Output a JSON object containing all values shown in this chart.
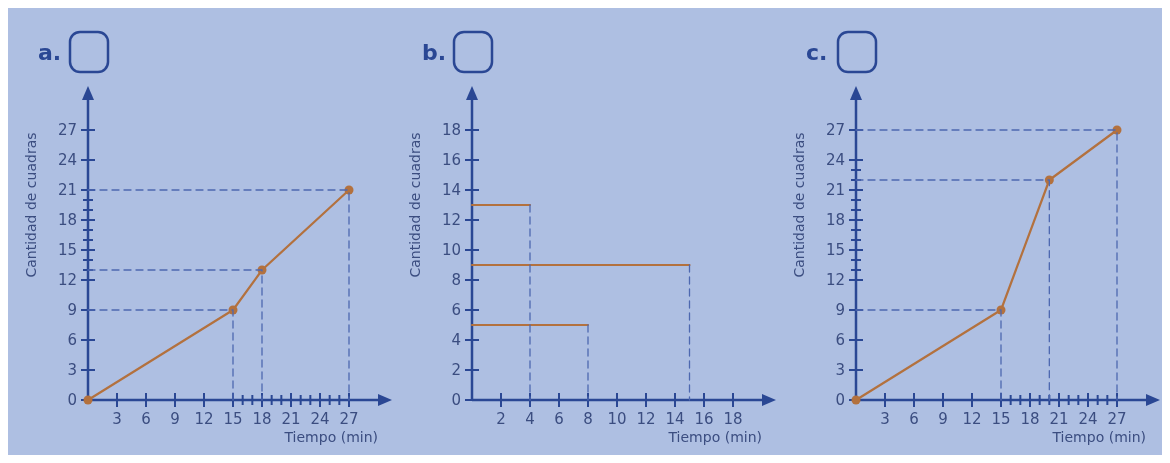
{
  "chart_data": [
    {
      "type": "line",
      "title": "a.",
      "xlabel": "Tiempo (min)",
      "ylabel": "Cantidad de cuadras",
      "xlim": [
        0,
        30
      ],
      "ylim": [
        0,
        30
      ],
      "marker": "circle",
      "xticks": [
        3,
        6,
        9,
        12,
        15,
        {
          "value": 16,
          "label": null
        },
        {
          "value": 17,
          "label": null
        },
        18,
        {
          "value": 19,
          "label": null
        },
        {
          "value": 20,
          "label": null
        },
        21,
        {
          "value": 22,
          "label": null
        },
        {
          "value": 23,
          "label": null
        },
        24,
        {
          "value": 25,
          "label": null
        },
        {
          "value": 26,
          "label": null
        },
        27
      ],
      "yticks": [
        0,
        3,
        6,
        9,
        12,
        {
          "value": 13,
          "label": null
        },
        {
          "value": 14,
          "label": null
        },
        15,
        {
          "value": 16,
          "label": null
        },
        {
          "value": 17,
          "label": null
        },
        18,
        {
          "value": 19,
          "label": null
        },
        {
          "value": 20,
          "label": null
        },
        21,
        24,
        27
      ],
      "series": [
        {
          "color": "#b3713e",
          "x": [
            0,
            15,
            18,
            27
          ],
          "values": [
            0,
            9,
            13,
            21
          ]
        },
        {
          "color": "#4d68b0",
          "x": [
            0,
            15,
            15
          ],
          "values": [
            9,
            9,
            0
          ],
          "line_style": "dashed",
          "marker": "none"
        },
        {
          "color": "#4d68b0",
          "x": [
            0,
            18,
            18
          ],
          "values": [
            13,
            13,
            0
          ],
          "line_style": "dashed",
          "marker": "none"
        },
        {
          "color": "#4d68b0",
          "x": [
            0,
            27,
            27
          ],
          "values": [
            21,
            21,
            0
          ],
          "line_style": "dashed",
          "marker": "none"
        }
      ]
    },
    {
      "type": "line",
      "title": "b.",
      "xlabel": "Tiempo (min)",
      "ylabel": "Cantidad de cuadras",
      "xlim": [
        0,
        20
      ],
      "ylim": [
        0,
        20
      ],
      "marker": "none",
      "xticks": [
        2,
        4,
        6,
        8,
        10,
        12,
        14,
        16,
        18
      ],
      "yticks": [
        0,
        2,
        4,
        6,
        8,
        10,
        12,
        14,
        16,
        18
      ],
      "series": [
        {
          "color": "#b3713e",
          "x": [
            0,
            4
          ],
          "values": [
            13,
            13
          ]
        },
        {
          "color": "#b3713e",
          "x": [
            0,
            15
          ],
          "values": [
            9,
            9
          ]
        },
        {
          "color": "#b3713e",
          "x": [
            0,
            8
          ],
          "values": [
            5,
            5
          ]
        },
        {
          "color": "#4d68b0",
          "x": [
            4,
            4
          ],
          "values": [
            13,
            0
          ],
          "line_style": "dashed"
        },
        {
          "color": "#4d68b0",
          "x": [
            15,
            15
          ],
          "values": [
            9,
            0
          ],
          "line_style": "dashed"
        },
        {
          "color": "#4d68b0",
          "x": [
            8,
            8
          ],
          "values": [
            5,
            0
          ],
          "line_style": "dashed"
        }
      ]
    },
    {
      "type": "line",
      "title": "c.",
      "xlabel": "Tiempo (min)",
      "ylabel": "Cantidad de cuadras",
      "xlim": [
        0,
        30
      ],
      "ylim": [
        0,
        30
      ],
      "marker": "circle",
      "xticks": [
        3,
        6,
        9,
        12,
        15,
        {
          "value": 16,
          "label": null
        },
        {
          "value": 17,
          "label": null
        },
        18,
        {
          "value": 19,
          "label": null
        },
        {
          "value": 20,
          "label": null
        },
        21,
        {
          "value": 22,
          "label": null
        },
        {
          "value": 23,
          "label": null
        },
        24,
        {
          "value": 25,
          "label": null
        },
        {
          "value": 26,
          "label": null
        },
        27
      ],
      "yticks": [
        0,
        3,
        6,
        9,
        12,
        {
          "value": 13,
          "label": null
        },
        {
          "value": 14,
          "label": null
        },
        15,
        {
          "value": 16,
          "label": null
        },
        {
          "value": 17,
          "label": null
        },
        18,
        {
          "value": 19,
          "label": null
        },
        {
          "value": 20,
          "label": null
        },
        21,
        {
          "value": 22,
          "label": null
        },
        {
          "value": 23,
          "label": null
        },
        24,
        27
      ],
      "series": [
        {
          "color": "#b3713e",
          "x": [
            0,
            15,
            20,
            27
          ],
          "values": [
            0,
            9,
            22,
            27
          ]
        },
        {
          "color": "#4d68b0",
          "x": [
            0,
            15,
            15
          ],
          "values": [
            9,
            9,
            0
          ],
          "line_style": "dashed",
          "marker": "none"
        },
        {
          "color": "#4d68b0",
          "x": [
            0,
            20,
            20
          ],
          "values": [
            22,
            22,
            0
          ],
          "line_style": "dashed",
          "marker": "none"
        },
        {
          "color": "#4d68b0",
          "x": [
            0,
            27,
            27
          ],
          "values": [
            27,
            27,
            0
          ],
          "line_style": "dashed",
          "marker": "none"
        }
      ]
    }
  ]
}
